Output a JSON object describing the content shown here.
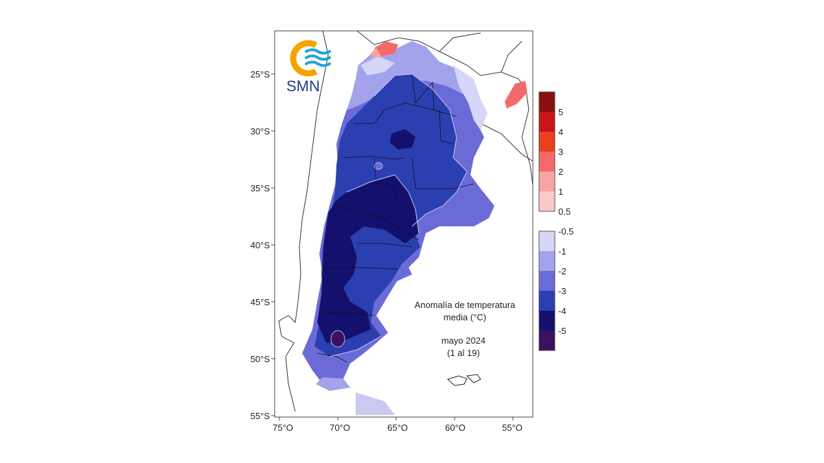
{
  "logo": {
    "text": "SMN",
    "colors": {
      "ring": "#f5a300",
      "waves": "#1fa3e0",
      "text": "#1f3d8c"
    }
  },
  "map": {
    "title_lines": [
      "Anomalía de temperatura",
      "media (°C)"
    ],
    "period_lines": [
      "mayo 2024",
      "(1 al 19)"
    ],
    "lat_ticks": [
      "25°S",
      "30°S",
      "35°S",
      "40°S",
      "45°S",
      "50°S",
      "55°S"
    ],
    "lon_ticks": [
      "75°O",
      "70°O",
      "65°O",
      "60°O",
      "55°O"
    ]
  },
  "legend": {
    "warm": [
      {
        "color": "#8a0f10",
        "label": "5"
      },
      {
        "color": "#c8141a",
        "label": "4"
      },
      {
        "color": "#e8401c",
        "label": "3"
      },
      {
        "color": "#f46a6a",
        "label": "2"
      },
      {
        "color": "#f9a4a4",
        "label": "1"
      },
      {
        "color": "#fcc9c9",
        "label": "0.5"
      }
    ],
    "cold": [
      {
        "color": "#d6d6f7",
        "label": "-0.5"
      },
      {
        "color": "#a3a3ec",
        "label": "-1"
      },
      {
        "color": "#6b6bd8",
        "label": "-2"
      },
      {
        "color": "#2b3fb0",
        "label": "-3"
      },
      {
        "color": "#14106e",
        "label": "-4"
      },
      {
        "color": "#3a1060",
        "label": "-5"
      }
    ]
  }
}
